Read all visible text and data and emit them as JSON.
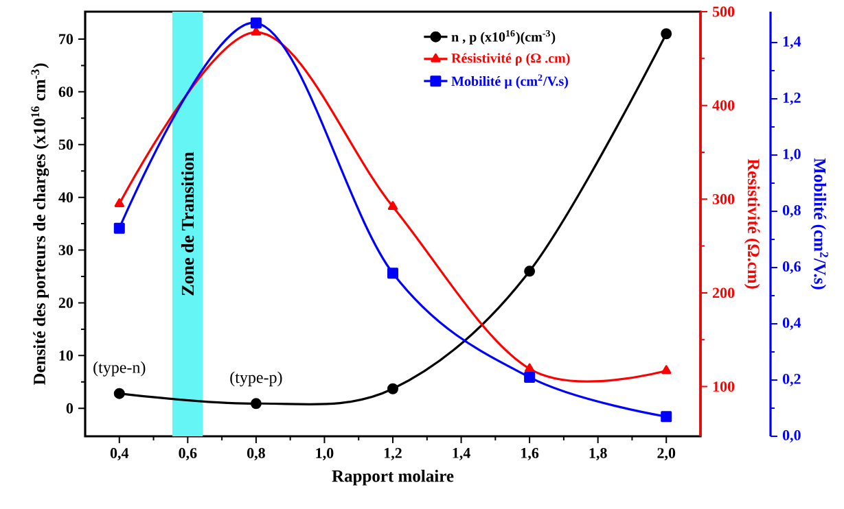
{
  "chart_data": {
    "type": "line",
    "xlabel": "Rapport molaire",
    "ylabel": "Densité des porteurs de charges (x10$^{16}$ cm$^{-3}$)",
    "y2label": "Resistivité (Ω.cm)",
    "y3label": "Mobilité (cm$^{2}$/V.s)",
    "x": [
      0.4,
      0.8,
      1.2,
      1.6,
      2.0
    ],
    "xlim": [
      0.3,
      2.1
    ],
    "xticks": [
      {
        "value": 0.4,
        "label": "0,4"
      },
      {
        "value": 0.6,
        "label": "0,6"
      },
      {
        "value": 0.8,
        "label": "0,8"
      },
      {
        "value": 1.0,
        "label": "1,0"
      },
      {
        "value": 1.2,
        "label": "1,2"
      },
      {
        "value": 1.4,
        "label": "1,4"
      },
      {
        "value": 1.6,
        "label": "1,6"
      },
      {
        "value": 1.8,
        "label": "1,8"
      },
      {
        "value": 2.0,
        "label": "2,0"
      }
    ],
    "ylim": [
      -5.3,
      75.2
    ],
    "yticks": [
      0,
      10,
      20,
      30,
      40,
      50,
      60,
      70
    ],
    "y2lim": [
      47,
      500
    ],
    "y2ticks": [
      100,
      200,
      300,
      400,
      500
    ],
    "y3lim": [
      0,
      1.51
    ],
    "y3ticks": [
      {
        "value": 0,
        "label": "0,0"
      },
      {
        "value": 0.2,
        "label": "0,2"
      },
      {
        "value": 0.4,
        "label": "0,4"
      },
      {
        "value": 0.6,
        "label": "0,6"
      },
      {
        "value": 0.8,
        "label": "0,8"
      },
      {
        "value": 1.0,
        "label": "1,0"
      },
      {
        "value": 1.2,
        "label": "1,2"
      },
      {
        "value": 1.4,
        "label": "1,4"
      }
    ],
    "series": [
      {
        "name": "n , p (x10$^{16}$)(cm$^{-3}$)",
        "color": "#000000",
        "marker": "circle",
        "values": [
          2.8,
          0.9,
          3.7,
          26,
          71
        ]
      },
      {
        "name": "Résistivité ρ (Ω .cm)",
        "color": "#ff0000",
        "marker": "triangle",
        "axis": "y2",
        "values": [
          295,
          478,
          292,
          119,
          117
        ]
      },
      {
        "name": "Mobilité µ (cm$^{2}$/V.s)",
        "color": "#0000ff",
        "marker": "square",
        "axis": "y3",
        "values": [
          0.74,
          1.47,
          0.58,
          0.21,
          0.07
        ]
      }
    ],
    "bands": [
      {
        "axis": "x",
        "from": 0.555,
        "to": 0.644,
        "label": "Zone de Transition",
        "color": "#66f5f5"
      }
    ],
    "annotations": [
      {
        "text": "(type-n)",
        "x": 0.4,
        "y": 2.8
      },
      {
        "text": "(type-p)",
        "x": 0.8,
        "y": 0.9
      }
    ],
    "legend": "top right",
    "line_style": "solid"
  }
}
